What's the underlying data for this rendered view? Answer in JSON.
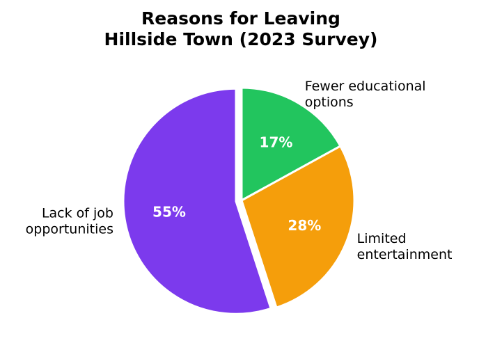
{
  "chart_data": {
    "type": "pie",
    "title_lines": [
      "Reasons for Leaving",
      "Hillside Town (2023 Survey)"
    ],
    "slices": [
      {
        "label_lines": [
          "Fewer educational",
          "options"
        ],
        "value": 17,
        "pct_label": "17%",
        "color": "#22c55e",
        "explode": false
      },
      {
        "label_lines": [
          "Limited",
          "entertainment"
        ],
        "value": 28,
        "pct_label": "28%",
        "color": "#f59e0b",
        "explode": false
      },
      {
        "label_lines": [
          "Lack of job",
          "opportunities"
        ],
        "value": 55,
        "pct_label": "55%",
        "color": "#7c3aed",
        "explode": true
      }
    ],
    "start_angle": 90,
    "direction": "clockwise"
  }
}
